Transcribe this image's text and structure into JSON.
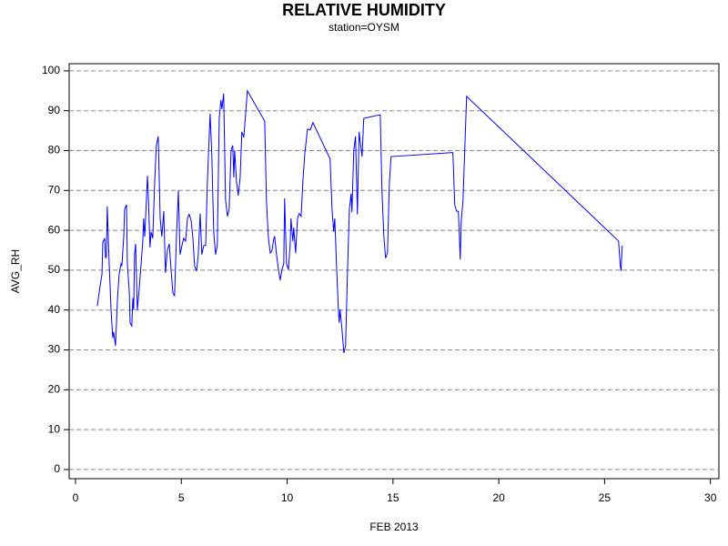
{
  "chart_data": {
    "type": "line",
    "title": "RELATIVE HUMIDITY",
    "subtitle": "station=OYSM",
    "x_label": "FEB 2013",
    "y_label": "AVG_RH",
    "xlim": [
      -0.3,
      30.4
    ],
    "ylim": [
      -2.3,
      101.8
    ],
    "xticks": [
      0,
      5,
      10,
      15,
      20,
      25,
      30
    ],
    "yticks": [
      0,
      10,
      20,
      30,
      40,
      50,
      60,
      70,
      80,
      90,
      100
    ],
    "grid": true,
    "series": [
      {
        "name": "AVG_RH",
        "color": "#0000ff",
        "x": [
          1.03,
          1.16,
          1.25,
          1.29,
          1.38,
          1.42,
          1.46,
          1.5,
          1.59,
          1.68,
          1.76,
          1.8,
          1.89,
          1.98,
          2.06,
          2.15,
          2.19,
          2.28,
          2.32,
          2.41,
          2.45,
          2.54,
          2.58,
          2.66,
          2.71,
          2.75,
          2.79,
          2.84,
          2.92,
          3.0,
          3.1,
          3.18,
          3.22,
          3.27,
          3.31,
          3.4,
          3.44,
          3.52,
          3.57,
          3.65,
          3.74,
          3.82,
          3.91,
          4.0,
          4.08,
          4.17,
          4.25,
          4.34,
          4.43,
          4.51,
          4.6,
          4.68,
          4.77,
          4.86,
          4.94,
          5.03,
          5.11,
          5.2,
          5.29,
          5.37,
          5.46,
          5.54,
          5.63,
          5.72,
          5.8,
          5.89,
          5.97,
          6.06,
          6.15,
          6.23,
          6.36,
          6.44,
          6.53,
          6.62,
          6.7,
          6.79,
          6.87,
          6.92,
          7.0,
          7.09,
          7.18,
          7.26,
          7.35,
          7.43,
          7.48,
          7.52,
          7.61,
          7.69,
          7.78,
          7.86,
          7.95,
          8.04,
          8.12,
          8.94,
          9.02,
          9.11,
          9.2,
          9.28,
          9.37,
          9.41,
          9.5,
          9.58,
          9.67,
          9.76,
          9.84,
          9.88,
          9.97,
          10.06,
          10.14,
          10.18,
          10.27,
          10.31,
          10.4,
          10.49,
          10.57,
          10.66,
          10.74,
          10.83,
          10.96,
          11.09,
          11.22,
          12.03,
          12.12,
          12.2,
          12.25,
          12.33,
          12.42,
          12.46,
          12.5,
          12.59,
          12.68,
          12.76,
          12.85,
          12.94,
          13.02,
          13.06,
          13.15,
          13.23,
          13.32,
          13.4,
          13.45,
          13.54,
          13.62,
          14.4,
          14.48,
          14.57,
          14.65,
          14.74,
          14.83,
          14.91,
          17.83,
          17.92,
          18.0,
          18.09,
          18.18,
          18.22,
          18.31,
          18.39,
          18.48,
          25.66,
          25.74,
          25.78,
          25.83
        ],
        "values": [
          41,
          46,
          49,
          57,
          58,
          53,
          53.5,
          66,
          51.6,
          40,
          33,
          34.5,
          31,
          42.5,
          49,
          51.6,
          51,
          58.4,
          65.3,
          66.4,
          51.6,
          44.7,
          36.8,
          36,
          43,
          40,
          54,
          56.6,
          40,
          44.7,
          51.6,
          57.3,
          63,
          58.4,
          63,
          73.7,
          68.7,
          55.7,
          59.6,
          58,
          72,
          81.3,
          83.6,
          63,
          58.4,
          64.8,
          49.3,
          55,
          56.6,
          50.5,
          44.3,
          43.6,
          58.4,
          70,
          53.9,
          56.2,
          58,
          57.3,
          63,
          64,
          62.6,
          58.4,
          51,
          49.8,
          53.9,
          64.2,
          53.9,
          56.2,
          56.2,
          72,
          89.3,
          79,
          59.6,
          53.9,
          56.2,
          88,
          92.7,
          90.4,
          94.3,
          67.6,
          63.5,
          65.3,
          80.1,
          81.3,
          73.3,
          80.1,
          72,
          68.7,
          73.3,
          84.7,
          83.3,
          89.3,
          95,
          87.4,
          67.6,
          58.4,
          54.3,
          54.8,
          58,
          58.4,
          53.9,
          50.5,
          47.5,
          50.2,
          51.6,
          68,
          51.6,
          50.2,
          56.2,
          63,
          57.3,
          60.7,
          54.3,
          63,
          64.2,
          63.5,
          72,
          79,
          85.4,
          85.2,
          87,
          77.9,
          65.3,
          59.6,
          63,
          51.6,
          40.2,
          36.8,
          40.2,
          35.2,
          29.2,
          31,
          49.3,
          65.3,
          69.2,
          64.6,
          80.1,
          83.6,
          64,
          84.7,
          82.4,
          78.5,
          88.1,
          89,
          69.9,
          58.4,
          53,
          54.3,
          72,
          78.5,
          79.5,
          66.4,
          64.8,
          64.8,
          52.7,
          61.9,
          67.6,
          80.1,
          93.6,
          57.3,
          51.1,
          49.8,
          56.2
        ]
      }
    ]
  }
}
